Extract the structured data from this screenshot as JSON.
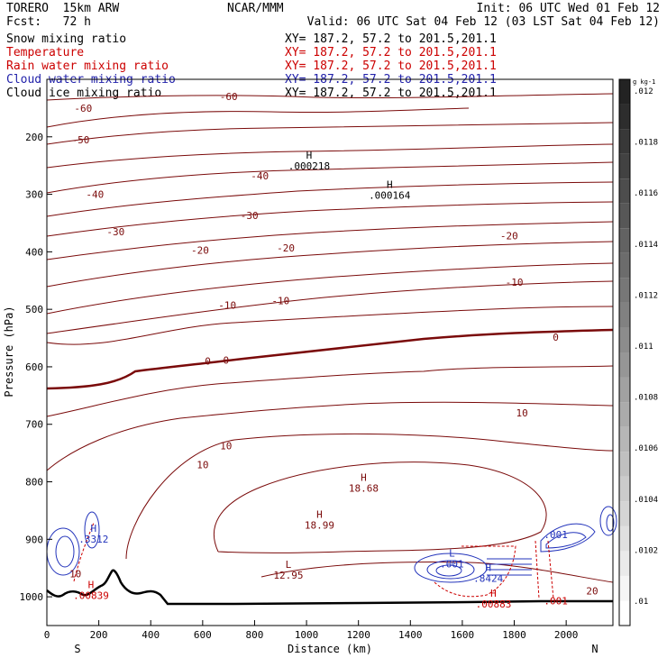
{
  "header": {
    "model": "TORERO  15km ARW",
    "center": "NCAR/MMM",
    "init": "Init: 06 UTC Wed 01 Feb 12",
    "fcst": "Fcst:   72 h",
    "valid": "Valid: 06 UTC Sat 04 Feb 12 (03 LST Sat 04 Feb 12)"
  },
  "fields": [
    {
      "name": "Snow mixing ratio",
      "xy": "XY= 187.2, 57.2 to 201.5,201.1",
      "color": "#000000",
      "xy_color": "#000000"
    },
    {
      "name": "Temperature",
      "xy": "XY= 187.2, 57.2 to 201.5,201.1",
      "color": "#cc0000",
      "xy_color": "#cc0000"
    },
    {
      "name": "Rain water mixing ratio",
      "xy": "XY= 187.2, 57.2 to 201.5,201.1",
      "color": "#cc0000",
      "xy_color": "#cc0000"
    },
    {
      "name": "Cloud water mixing ratio",
      "xy": "XY= 187.2, 57.2 to 201.5,201.1",
      "color": "#2222aa",
      "xy_color": "#2222aa"
    },
    {
      "name": "Cloud ice mixing ratio",
      "xy": "XY= 187.2, 57.2 to 201.5,201.1",
      "color": "#000000",
      "xy_color": "#000000"
    }
  ],
  "chart_data": {
    "type": "contour",
    "xlabel": "Distance (km)",
    "ylabel": "Pressure (hPa)",
    "xlim": [
      0,
      2180
    ],
    "ylim": [
      1050,
      100
    ],
    "x_ticks": [
      0,
      200,
      400,
      600,
      800,
      1000,
      1200,
      1400,
      1600,
      1800,
      2000
    ],
    "y_ticks": [
      200,
      300,
      400,
      500,
      600,
      700,
      800,
      900,
      1000
    ],
    "endpoints": {
      "left": "S",
      "right": "N"
    },
    "colorbar": {
      "unit": "g kg-1",
      "labels": [
        ".01",
        ".0102",
        ".0104",
        ".0106",
        ".0108",
        ".011",
        ".0112",
        ".0114",
        ".0116",
        ".0118",
        ".012"
      ]
    },
    "colors": {
      "temperature": "#7a0a0a",
      "cloud_water": "#2233bb",
      "rain": "#cc0000",
      "terrain": "#000000"
    },
    "temperature_labels": [
      {
        "text": "-60",
        "x": 140,
        "p": 150
      },
      {
        "text": "-60",
        "x": 700,
        "p": 130
      },
      {
        "text": "-50",
        "x": 130,
        "p": 205
      },
      {
        "text": "-40",
        "x": 820,
        "p": 268
      },
      {
        "text": "-40",
        "x": 185,
        "p": 300
      },
      {
        "text": "-30",
        "x": 780,
        "p": 337
      },
      {
        "text": "-30",
        "x": 265,
        "p": 365
      },
      {
        "text": "-20",
        "x": 1780,
        "p": 372
      },
      {
        "text": "-20",
        "x": 920,
        "p": 393
      },
      {
        "text": "-20",
        "x": 590,
        "p": 397
      },
      {
        "text": "-10",
        "x": 1800,
        "p": 453
      },
      {
        "text": "-10",
        "x": 900,
        "p": 485
      },
      {
        "text": "-10",
        "x": 695,
        "p": 493
      },
      {
        "text": "0",
        "x": 1960,
        "p": 548
      },
      {
        "text": "0",
        "x": 690,
        "p": 588
      },
      {
        "text": "0",
        "x": 620,
        "p": 590
      },
      {
        "text": "10",
        "x": 1830,
        "p": 680
      },
      {
        "text": "10",
        "x": 690,
        "p": 737
      },
      {
        "text": "10",
        "x": 600,
        "p": 770
      },
      {
        "text": "20",
        "x": 2100,
        "p": 990
      },
      {
        "text": "10",
        "x": 110,
        "p": 960
      }
    ],
    "extrema": [
      {
        "letter": "H",
        "value": ".000218",
        "x": 1010,
        "p": 238,
        "color": "#000000"
      },
      {
        "letter": "H",
        "value": ".000164",
        "x": 1320,
        "p": 289,
        "color": "#000000"
      },
      {
        "letter": "H",
        "value": "18.68",
        "x": 1220,
        "p": 798,
        "color": "#7a0a0a"
      },
      {
        "letter": "H",
        "value": "18.99",
        "x": 1050,
        "p": 863,
        "color": "#7a0a0a"
      },
      {
        "letter": "L",
        "value": "12.95",
        "x": 930,
        "p": 950,
        "color": "#7a0a0a"
      },
      {
        "letter": "H",
        "value": ".3312",
        "x": 180,
        "p": 887,
        "color": "#2233bb"
      },
      {
        "letter": "H",
        "value": ".00839",
        "x": 170,
        "p": 985,
        "color": "#cc0000"
      },
      {
        "letter": "L",
        "value": ".001",
        "x": 1560,
        "p": 930,
        "color": "#2233bb"
      },
      {
        "letter": "H",
        "value": ".8424",
        "x": 1700,
        "p": 955,
        "color": "#2233bb"
      },
      {
        "letter": "H",
        "value": ".00883",
        "x": 1720,
        "p": 1000,
        "color": "#cc0000"
      },
      {
        "letter": "",
        "value": ".001",
        "x": 1960,
        "p": 898,
        "color": "#2233bb"
      },
      {
        "letter": "",
        "value": ".001",
        "x": 1960,
        "p": 1013,
        "color": "#cc0000"
      }
    ]
  }
}
